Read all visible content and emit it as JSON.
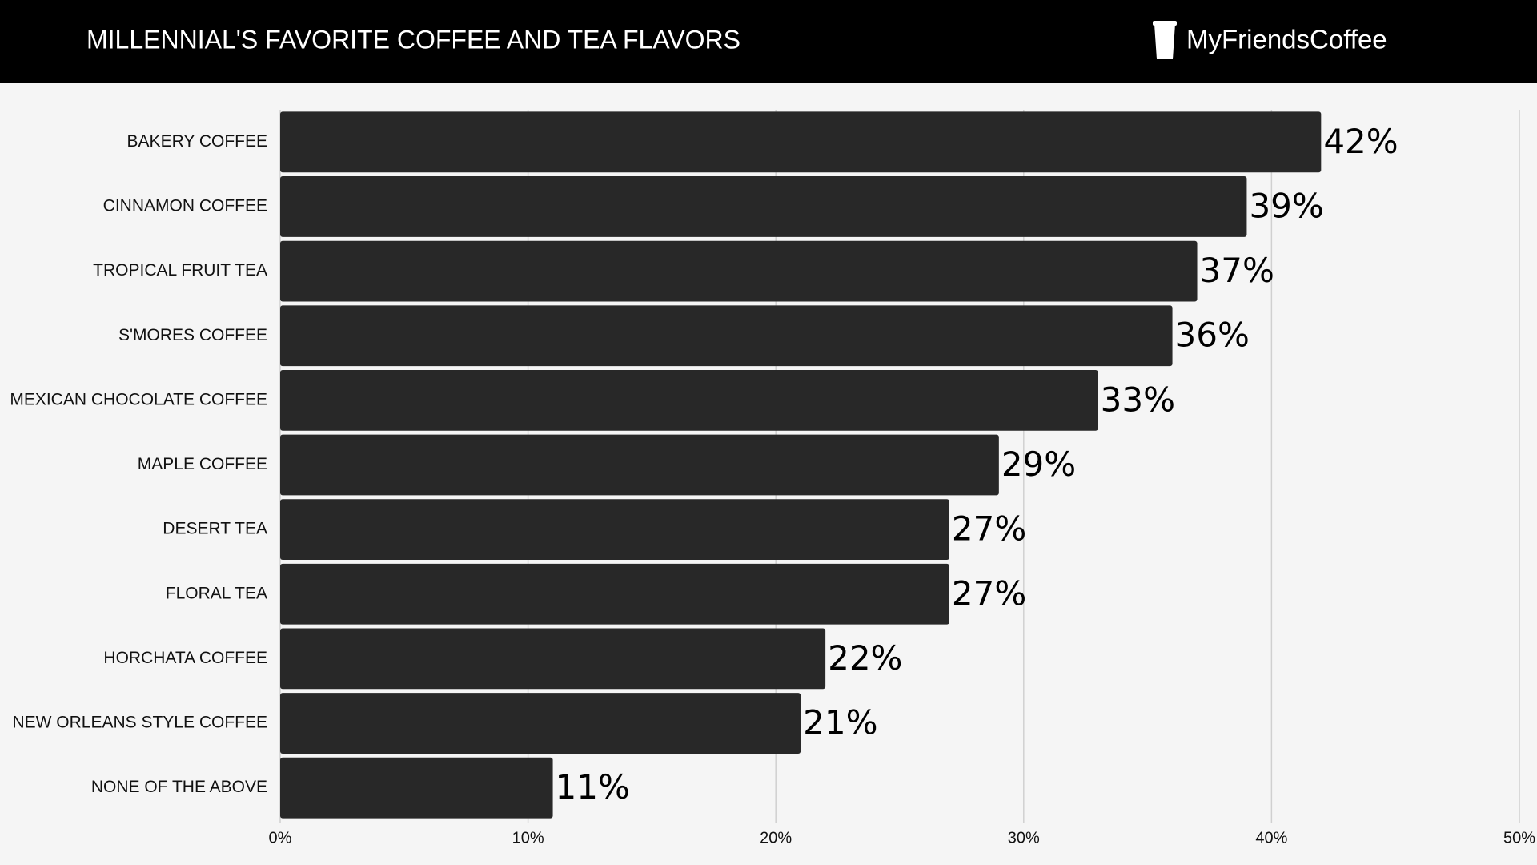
{
  "header": {
    "brand": "MyFriendsCoffee"
  },
  "chart_data": {
    "type": "bar",
    "orientation": "horizontal",
    "title": "MILLENNIAL'S FAVORITE COFFEE AND TEA FLAVORS",
    "categories": [
      "BAKERY COFFEE",
      "CINNAMON COFFEE",
      "TROPICAL FRUIT TEA",
      "S'MORES COFFEE",
      "MEXICAN CHOCOLATE COFFEE",
      "MAPLE COFFEE",
      "DESERT TEA",
      "FLORAL TEA",
      "HORCHATA COFFEE",
      "NEW ORLEANS STYLE COFFEE",
      "NONE OF THE ABOVE"
    ],
    "values": [
      42,
      39,
      37,
      36,
      33,
      29,
      27,
      27,
      22,
      21,
      11
    ],
    "value_labels": [
      "42%",
      "39%",
      "37%",
      "36%",
      "33%",
      "29%",
      "27%",
      "27%",
      "22%",
      "21%",
      "11%"
    ],
    "color": "#282828",
    "xlim": [
      0,
      50
    ],
    "xticks": [
      {
        "value": 0,
        "label": "0%"
      },
      {
        "value": 10,
        "label": "10%"
      },
      {
        "value": 20,
        "label": "20%"
      },
      {
        "value": 30,
        "label": "30%"
      },
      {
        "value": 40,
        "label": "40%"
      },
      {
        "value": 50,
        "label": "50%"
      }
    ],
    "grid": true
  }
}
